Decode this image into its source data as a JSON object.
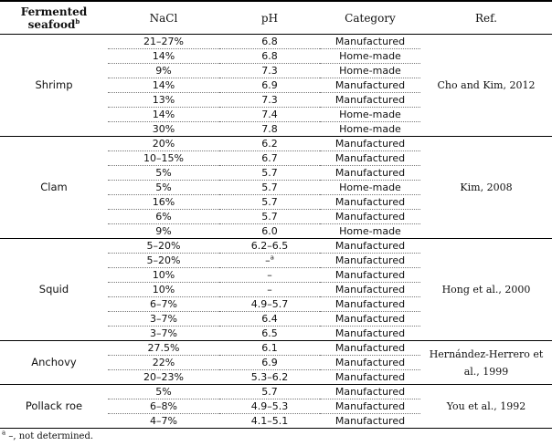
{
  "table": {
    "header": [
      {
        "text": "Fermented seafood",
        "sup": "b"
      },
      "NaCl",
      "pH",
      "Category",
      "Ref."
    ],
    "groups": [
      {
        "name": "Shrimp",
        "ref": "Cho and Kim, 2012",
        "rows": [
          [
            "21–27%",
            "6.8",
            "Manufactured"
          ],
          [
            "14%",
            "6.8",
            "Home-made"
          ],
          [
            "9%",
            "7.3",
            "Home-made"
          ],
          [
            "14%",
            "6.9",
            "Manufactured"
          ],
          [
            "13%",
            "7.3",
            "Manufactured"
          ],
          [
            "14%",
            "7.4",
            "Home-made"
          ],
          [
            "30%",
            "7.8",
            "Home-made"
          ]
        ]
      },
      {
        "name": "Clam",
        "ref": "Kim, 2008",
        "rows": [
          [
            "20%",
            "6.2",
            "Manufactured"
          ],
          [
            "10–15%",
            "6.7",
            "Manufactured"
          ],
          [
            "5%",
            "5.7",
            "Manufactured"
          ],
          [
            "5%",
            "5.7",
            "Home-made"
          ],
          [
            "16%",
            "5.7",
            "Manufactured"
          ],
          [
            "6%",
            "5.7",
            "Manufactured"
          ],
          [
            "9%",
            "6.0",
            "Home-made"
          ]
        ]
      },
      {
        "name": "Squid",
        "ref": "Hong et al., 2000",
        "rows": [
          [
            "5–20%",
            "6.2–6.5",
            "Manufactured"
          ],
          [
            "5–20%",
            {
              "text": "–",
              "sup": "a"
            },
            "Manufactured"
          ],
          [
            "10%",
            "–",
            "Manufactured"
          ],
          [
            "10%",
            "–",
            "Manufactured"
          ],
          [
            "6–7%",
            "4.9–5.7",
            "Manufactured"
          ],
          [
            "3–7%",
            "6.4",
            "Manufactured"
          ],
          [
            "3–7%",
            "6.5",
            "Manufactured"
          ]
        ]
      },
      {
        "name": "Anchovy",
        "ref": "Hernández-Herrero et al., 1999",
        "rows": [
          [
            "27.5%",
            "6.1",
            "Manufactured"
          ],
          [
            "22%",
            "6.9",
            "Manufactured"
          ],
          [
            "20–23%",
            "5.3–6.2",
            "Manufactured"
          ]
        ]
      },
      {
        "name": "Pollack roe",
        "ref": "You et al., 1992",
        "rows": [
          [
            "5%",
            "5.7",
            "Manufactured"
          ],
          [
            "6–8%",
            "4.9–5.3",
            "Manufactured"
          ],
          [
            "4–7%",
            "4.1–5.1",
            "Manufactured"
          ]
        ]
      }
    ],
    "footnote": {
      "mark": "a",
      "text": "–, not determined."
    }
  }
}
